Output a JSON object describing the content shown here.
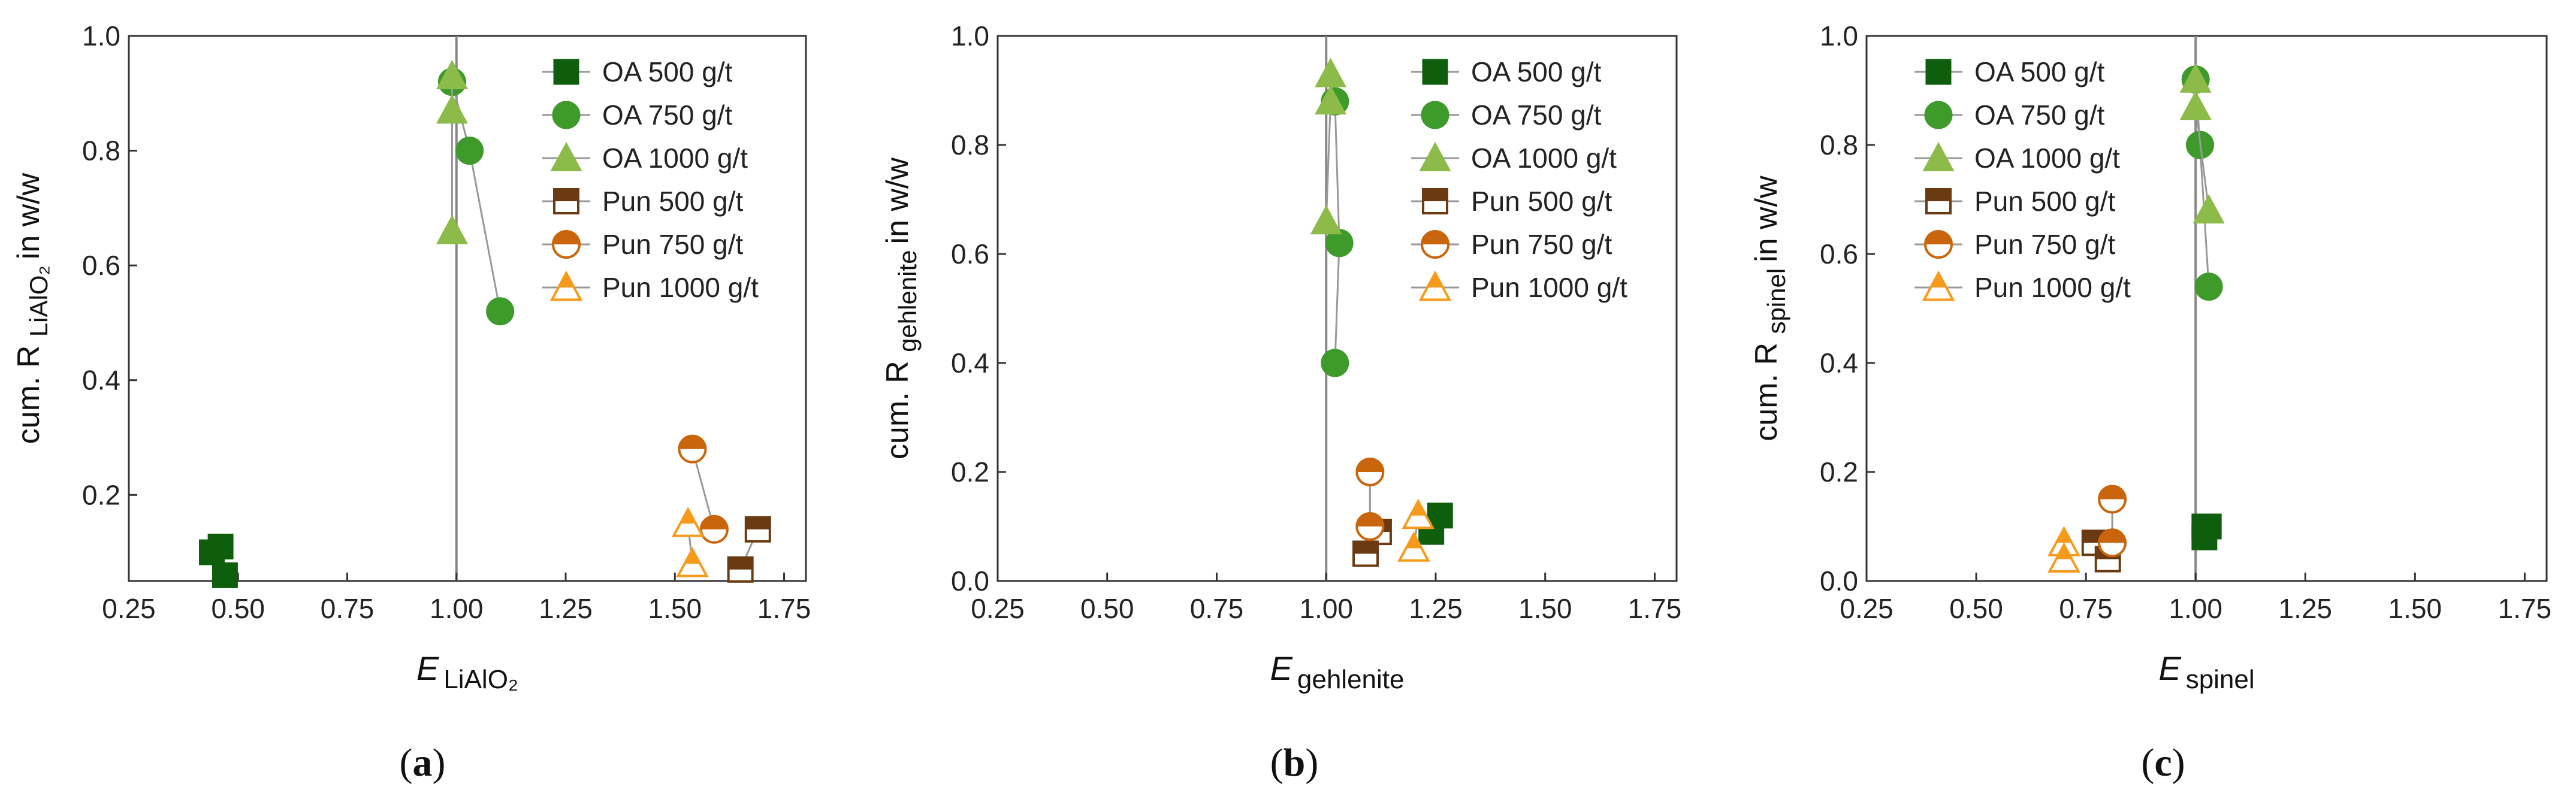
{
  "colors": {
    "oa500": "#0e5e0e",
    "oa750": "#3e9a2a",
    "oa1000": "#8cbb4a",
    "pun500": "#6a3b12",
    "pun750": "#c9650c",
    "pun1000": "#f79a1c"
  },
  "legend_items": [
    {
      "label": "OA 500 g/t",
      "key": "oa500",
      "marker": "square",
      "fill": "full"
    },
    {
      "label": "OA 750 g/t",
      "key": "oa750",
      "marker": "circle",
      "fill": "full"
    },
    {
      "label": "OA 1000 g/t",
      "key": "oa1000",
      "marker": "triangle",
      "fill": "full"
    },
    {
      "label": "Pun 500 g/t",
      "key": "pun500",
      "marker": "square",
      "fill": "top"
    },
    {
      "label": "Pun 750 g/t",
      "key": "pun750",
      "marker": "circle",
      "fill": "top"
    },
    {
      "label": "Pun 1000 g/t",
      "key": "pun1000",
      "marker": "triangle",
      "fill": "top"
    }
  ],
  "chart_data": [
    {
      "type": "scatter",
      "caption": "a",
      "ylabel_prefix": "cum. R",
      "ylabel_sub": "LiAlO₂",
      "ylabel_suffix": "in w/w",
      "xlabel_main": "E",
      "xlabel_sub": "LiAlO₂",
      "xlim": [
        0.25,
        1.8
      ],
      "ylim": [
        0.05,
        1.0
      ],
      "xticks": [
        "0.25",
        "0.50",
        "0.75",
        "1.00",
        "1.25",
        "1.50",
        "1.75"
      ],
      "yticks": [
        "0.2",
        "0.4",
        "0.6",
        "0.8",
        "1.0"
      ],
      "vline_x": 1.0,
      "series": [
        {
          "name": "OA 500 g/t",
          "key": "oa500",
          "points": [
            [
              0.44,
              0.1
            ],
            [
              0.46,
              0.11
            ],
            [
              0.47,
              0.06
            ]
          ]
        },
        {
          "name": "OA 750 g/t",
          "key": "oa750",
          "points": [
            [
              0.99,
              0.92
            ],
            [
              1.03,
              0.8
            ],
            [
              1.1,
              0.52
            ]
          ]
        },
        {
          "name": "OA 1000 g/t",
          "key": "oa1000",
          "points": [
            [
              0.99,
              0.93
            ],
            [
              0.99,
              0.87
            ],
            [
              0.99,
              0.66
            ]
          ]
        },
        {
          "name": "Pun 500 g/t",
          "key": "pun500",
          "points": [
            [
              1.69,
              0.14
            ],
            [
              1.65,
              0.07
            ]
          ]
        },
        {
          "name": "Pun 750 g/t",
          "key": "pun750",
          "points": [
            [
              1.54,
              0.28
            ],
            [
              1.59,
              0.14
            ]
          ]
        },
        {
          "name": "Pun 1000 g/t",
          "key": "pun1000",
          "points": [
            [
              1.53,
              0.15
            ],
            [
              1.54,
              0.08
            ]
          ]
        }
      ]
    },
    {
      "type": "scatter",
      "caption": "b",
      "ylabel_prefix": "cum. R",
      "ylabel_sub": "gehlenite",
      "ylabel_suffix": "in w/w",
      "xlabel_main": "E",
      "xlabel_sub": "gehlenite",
      "xlim": [
        0.25,
        1.8
      ],
      "ylim": [
        0.0,
        1.0
      ],
      "xticks": [
        "0.25",
        "0.50",
        "0.75",
        "1.00",
        "1.25",
        "1.50",
        "1.75"
      ],
      "yticks": [
        "0.0",
        "0.2",
        "0.4",
        "0.6",
        "0.8",
        "1.0"
      ],
      "vline_x": 1.0,
      "series": [
        {
          "name": "OA 500 g/t",
          "key": "oa500",
          "points": [
            [
              1.26,
              0.12
            ],
            [
              1.24,
              0.09
            ]
          ]
        },
        {
          "name": "OA 750 g/t",
          "key": "oa750",
          "points": [
            [
              1.02,
              0.88
            ],
            [
              1.03,
              0.62
            ],
            [
              1.02,
              0.4
            ]
          ]
        },
        {
          "name": "OA 1000 g/t",
          "key": "oa1000",
          "points": [
            [
              1.01,
              0.93
            ],
            [
              1.01,
              0.88
            ],
            [
              1.0,
              0.66
            ]
          ]
        },
        {
          "name": "Pun 500 g/t",
          "key": "pun500",
          "points": [
            [
              1.12,
              0.09
            ],
            [
              1.09,
              0.05
            ]
          ]
        },
        {
          "name": "Pun 750 g/t",
          "key": "pun750",
          "points": [
            [
              1.1,
              0.2
            ],
            [
              1.1,
              0.1
            ]
          ]
        },
        {
          "name": "Pun 1000 g/t",
          "key": "pun1000",
          "points": [
            [
              1.21,
              0.12
            ],
            [
              1.2,
              0.06
            ]
          ]
        }
      ]
    },
    {
      "type": "scatter",
      "caption": "c",
      "ylabel_prefix": "cum. R",
      "ylabel_sub": "spinel",
      "ylabel_suffix": "in w/w",
      "xlabel_main": "E",
      "xlabel_sub": "spinel",
      "xlim": [
        0.25,
        1.8
      ],
      "ylim": [
        0.0,
        1.0
      ],
      "xticks": [
        "0.25",
        "0.50",
        "0.75",
        "1.00",
        "1.25",
        "1.50",
        "1.75"
      ],
      "yticks": [
        "0.0",
        "0.2",
        "0.4",
        "0.6",
        "0.8",
        "1.0"
      ],
      "vline_x": 1.0,
      "series": [
        {
          "name": "OA 500 g/t",
          "key": "oa500",
          "points": [
            [
              1.02,
              0.1
            ],
            [
              1.03,
              0.1
            ],
            [
              1.02,
              0.08
            ]
          ]
        },
        {
          "name": "OA 750 g/t",
          "key": "oa750",
          "points": [
            [
              1.0,
              0.92
            ],
            [
              1.01,
              0.8
            ],
            [
              1.03,
              0.54
            ]
          ]
        },
        {
          "name": "OA 1000 g/t",
          "key": "oa1000",
          "points": [
            [
              1.0,
              0.92
            ],
            [
              1.0,
              0.87
            ],
            [
              1.03,
              0.68
            ]
          ]
        },
        {
          "name": "Pun 500 g/t",
          "key": "pun500",
          "points": [
            [
              0.77,
              0.07
            ],
            [
              0.8,
              0.04
            ]
          ]
        },
        {
          "name": "Pun 750 g/t",
          "key": "pun750",
          "points": [
            [
              0.81,
              0.15
            ],
            [
              0.81,
              0.07
            ]
          ]
        },
        {
          "name": "Pun 1000 g/t",
          "key": "pun1000",
          "points": [
            [
              0.7,
              0.07
            ],
            [
              0.7,
              0.04
            ]
          ]
        }
      ]
    }
  ]
}
